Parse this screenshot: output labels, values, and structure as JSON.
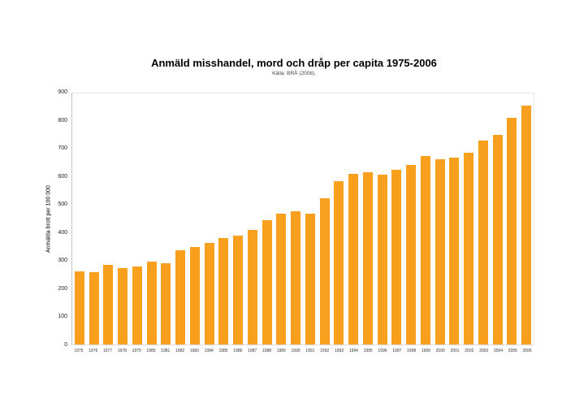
{
  "page": {
    "background": "#ffffff"
  },
  "chart_data": {
    "type": "bar",
    "title": "Anmäld misshandel, mord och dråp per capita 1975-2006",
    "subtitle": "Källa: BRÅ (2008).",
    "ylabel": "Anmälda brott per 100 000",
    "xlabel": "",
    "categories": [
      "1975",
      "1976",
      "1977",
      "1978",
      "1979",
      "1980",
      "1981",
      "1982",
      "1983",
      "1984",
      "1985",
      "1986",
      "1987",
      "1988",
      "1989",
      "1990",
      "1991",
      "1992",
      "1993",
      "1994",
      "1995",
      "1996",
      "1997",
      "1998",
      "1999",
      "2000",
      "2001",
      "2002",
      "2003",
      "2004",
      "2005",
      "2006"
    ],
    "values": [
      261,
      258,
      286,
      274,
      280,
      296,
      292,
      338,
      350,
      363,
      381,
      391,
      411,
      445,
      468,
      477,
      470,
      523,
      586,
      612,
      618,
      608,
      625,
      645,
      676,
      665,
      669,
      687,
      730,
      751,
      813,
      855
    ],
    "ylim": [
      0,
      900
    ],
    "ytick_step": 100,
    "bar_color": "#F8A01D",
    "grid": false,
    "legend": null
  }
}
